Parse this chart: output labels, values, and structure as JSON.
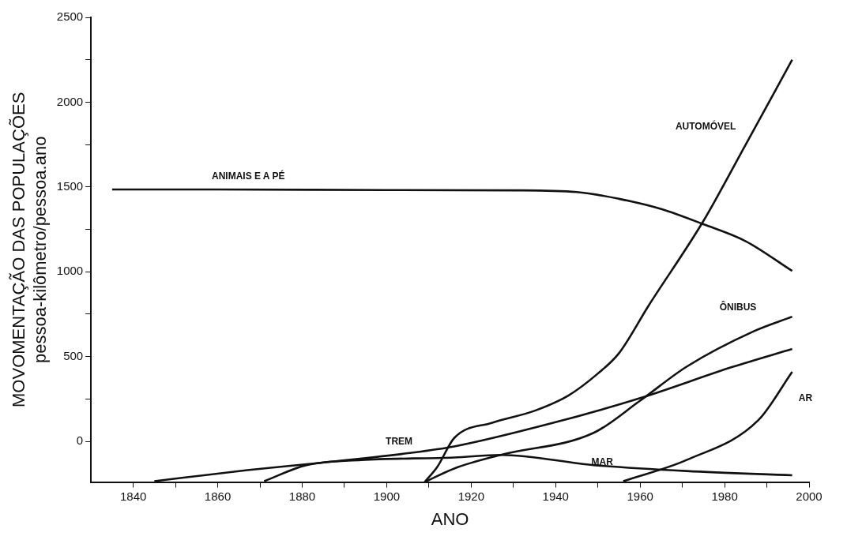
{
  "chart_data": {
    "type": "line",
    "xlabel": "ANO",
    "ylabel": "MOVOMENTAÇÃO DAS POPULAÇÕES\npessoa-kilômetro/pessoa.ano",
    "xlim": [
      1830,
      2000
    ],
    "ylim": [
      -240,
      2500
    ],
    "xticks": [
      1840,
      {
        "value": 1850,
        "label": null
      },
      1860,
      {
        "value": 1870,
        "label": null
      },
      1880,
      {
        "value": 1890,
        "label": null
      },
      1900,
      {
        "value": 1910,
        "label": null
      },
      1920,
      {
        "value": 1930,
        "label": null
      },
      1940,
      {
        "value": 1950,
        "label": null
      },
      1960,
      {
        "value": 1970,
        "label": null
      },
      1980,
      {
        "value": 1990,
        "label": null
      },
      2000
    ],
    "yticks": [
      0,
      {
        "value": 250,
        "label": null
      },
      500,
      {
        "value": 750,
        "label": null
      },
      1000,
      {
        "value": 1250,
        "label": null
      },
      1500,
      {
        "value": 1750,
        "label": null
      },
      2000,
      {
        "value": 2250,
        "label": null
      },
      2500
    ],
    "grid": false,
    "legend": false,
    "marker": "none",
    "line_style": "solid",
    "series": [
      {
        "name": "ANIMAIS E A PÉ",
        "color": "#111111",
        "x": [
          1835,
          1860,
          1900,
          1930,
          1945,
          1955,
          1965,
          1975,
          1985,
          1996
        ],
        "values": [
          1485,
          1485,
          1482,
          1480,
          1470,
          1430,
          1370,
          1280,
          1180,
          1005
        ]
      },
      {
        "name": "AUTOMÓVEL",
        "color": "#111111",
        "x": [
          1909,
          1912,
          1916,
          1925,
          1935,
          1943,
          1950,
          1955,
          1962,
          1975,
          1985,
          1996
        ],
        "values": [
          -240,
          -150,
          20,
          110,
          180,
          270,
          400,
          520,
          800,
          1300,
          1750,
          2250
        ]
      },
      {
        "name": "ÔNIBUS",
        "color": "#111111",
        "x": [
          1909,
          1916,
          1927,
          1949,
          1960,
          1971,
          1987,
          1996
        ],
        "values": [
          -240,
          -160,
          -80,
          50,
          240,
          440,
          650,
          735
        ]
      },
      {
        "name": "TREM",
        "color": "#111111",
        "x": [
          1845,
          1867,
          1883,
          1905,
          1916,
          1938,
          1960,
          1982,
          1996
        ],
        "values": [
          -235,
          -170,
          -130,
          -70,
          -30,
          100,
          255,
          440,
          545
        ]
      },
      {
        "name": "MAR",
        "color": "#111111",
        "x": [
          1871,
          1881,
          1894,
          1916,
          1927,
          1949,
          1971,
          1996
        ],
        "values": [
          -235,
          -140,
          -110,
          -95,
          -80,
          -140,
          -175,
          -200
        ]
      },
      {
        "name": "AR",
        "color": "#111111",
        "x": [
          1956,
          1971,
          1988,
          1996
        ],
        "values": [
          -235,
          -110,
          125,
          410
        ]
      }
    ]
  }
}
